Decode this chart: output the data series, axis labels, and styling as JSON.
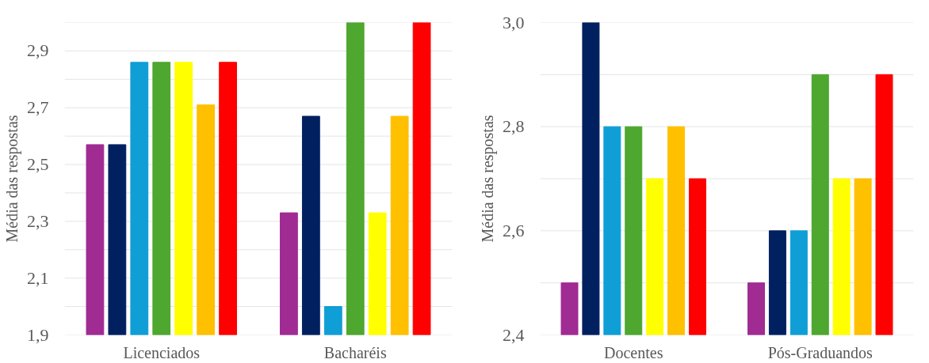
{
  "chart_data": [
    {
      "type": "bar",
      "ylabel": "Média das respostas",
      "categories": [
        "Licenciados",
        "Bacharéis"
      ],
      "ylim": [
        1.9,
        3.0
      ],
      "yticks": [
        {
          "value": 1.9,
          "label": "1,9"
        },
        {
          "value": 2.0,
          "label": null
        },
        {
          "value": 2.1,
          "label": "2,1"
        },
        {
          "value": 2.2,
          "label": null
        },
        {
          "value": 2.3,
          "label": "2,3"
        },
        {
          "value": 2.4,
          "label": null
        },
        {
          "value": 2.5,
          "label": "2,5"
        },
        {
          "value": 2.6,
          "label": null
        },
        {
          "value": 2.7,
          "label": "2,7"
        },
        {
          "value": 2.8,
          "label": null
        },
        {
          "value": 2.9,
          "label": "2,9"
        },
        {
          "value": 3.0,
          "label": null
        }
      ],
      "grid": "y",
      "series": [
        {
          "color": "#a02b93",
          "values": [
            2.57,
            2.33
          ]
        },
        {
          "color": "#002060",
          "values": [
            2.57,
            2.67
          ]
        },
        {
          "color": "#0f9ed5",
          "values": [
            2.86,
            2.0
          ]
        },
        {
          "color": "#4ea72e",
          "values": [
            2.86,
            3.0
          ]
        },
        {
          "color": "#ffff00",
          "values": [
            2.86,
            2.33
          ]
        },
        {
          "color": "#ffc000",
          "values": [
            2.71,
            2.67
          ]
        },
        {
          "color": "#ff0000",
          "values": [
            2.86,
            3.0
          ]
        }
      ]
    },
    {
      "type": "bar",
      "ylabel": "Média das respostas",
      "categories": [
        "Docentes",
        "Pós-Graduandos"
      ],
      "ylim": [
        2.4,
        3.0
      ],
      "yticks": [
        {
          "value": 2.4,
          "label": "2,4"
        },
        {
          "value": 2.5,
          "label": null
        },
        {
          "value": 2.6,
          "label": "2,6"
        },
        {
          "value": 2.7,
          "label": null
        },
        {
          "value": 2.8,
          "label": "2,8"
        },
        {
          "value": 2.9,
          "label": null
        },
        {
          "value": 3.0,
          "label": "3,0"
        }
      ],
      "grid": "y",
      "series": [
        {
          "color": "#a02b93",
          "values": [
            2.5,
            2.5
          ]
        },
        {
          "color": "#002060",
          "values": [
            3.0,
            2.6
          ]
        },
        {
          "color": "#0f9ed5",
          "values": [
            2.8,
            2.6
          ]
        },
        {
          "color": "#4ea72e",
          "values": [
            2.8,
            2.9
          ]
        },
        {
          "color": "#ffff00",
          "values": [
            2.7,
            2.7
          ]
        },
        {
          "color": "#ffc000",
          "values": [
            2.8,
            2.7
          ]
        },
        {
          "color": "#ff0000",
          "values": [
            2.7,
            2.9
          ]
        }
      ]
    }
  ]
}
